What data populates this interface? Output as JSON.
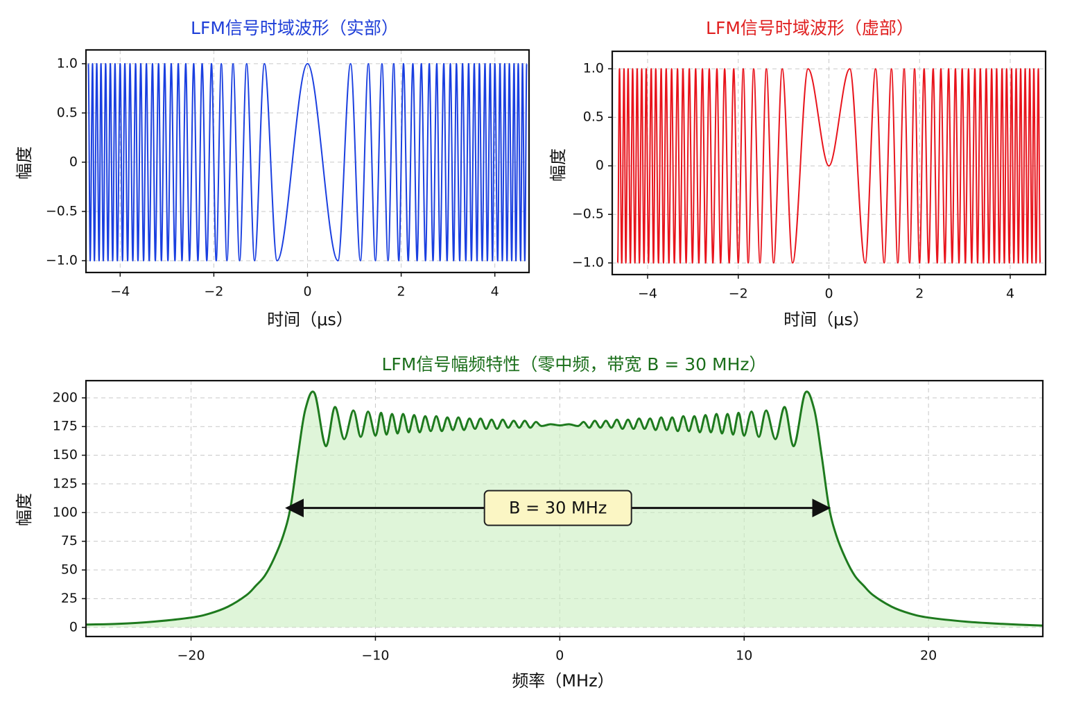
{
  "chart_data": [
    {
      "type": "line",
      "title": "LFM信号时域波形（实部）",
      "title_color": "#1f3fd8",
      "xlabel": "时间（μs）",
      "ylabel": "幅度",
      "color": "#1a3fe0",
      "x": [
        -4.68,
        -4.64,
        -4.59,
        -4.55,
        -4.5,
        -4.45,
        -4.41,
        -4.36,
        -4.31,
        -4.26,
        -4.21,
        -4.16,
        -4.11,
        -4.06,
        -4.0,
        -3.95,
        -3.9,
        -3.84,
        -3.79,
        -3.73,
        -3.67,
        -3.62,
        -3.56,
        -3.5,
        -3.44,
        -3.38,
        -3.31,
        -3.25,
        -3.18,
        -3.12,
        -3.05,
        -2.98,
        -2.91,
        -2.83,
        -2.76,
        -2.68,
        -2.6,
        -2.52,
        -2.43,
        -2.34,
        -2.25,
        -2.15,
        -2.05,
        -1.95,
        -1.84,
        -1.72,
        -1.59,
        -1.45,
        -1.3,
        -1.13,
        -0.92,
        -0.65,
        0,
        0.65,
        0.92,
        1.13,
        1.3,
        1.45,
        1.59,
        1.72,
        1.84,
        1.95,
        2.05,
        2.15,
        2.25,
        2.34,
        2.43,
        2.52,
        2.6,
        2.68,
        2.76,
        2.83,
        2.91,
        2.98,
        3.05,
        3.12,
        3.18,
        3.25,
        3.31,
        3.38,
        3.44,
        3.5,
        3.56,
        3.62,
        3.67,
        3.73,
        3.79,
        3.84,
        3.9,
        3.95,
        4.0,
        4.06,
        4.11,
        4.16,
        4.21,
        4.26,
        4.31,
        4.36,
        4.41,
        4.45,
        4.5,
        4.55,
        4.59,
        4.64,
        4.68
      ],
      "values": [
        1,
        -1,
        1,
        -1,
        1,
        -1,
        1,
        -1,
        1,
        -1,
        1,
        -1,
        1,
        -1,
        1,
        -1,
        1,
        -1,
        1,
        -1,
        1,
        -1,
        1,
        -1,
        1,
        -1,
        1,
        -1,
        1,
        -1,
        1,
        -1,
        1,
        -1,
        1,
        -1,
        1,
        -1,
        1,
        -1,
        1,
        -1,
        1,
        -1,
        1,
        -1,
        1,
        -1,
        1,
        -1,
        1,
        -1,
        1,
        -1,
        1,
        -1,
        1,
        -1,
        1,
        -1,
        1,
        -1,
        1,
        -1,
        1,
        -1,
        1,
        -1,
        1,
        -1,
        1,
        -1,
        1,
        -1,
        1,
        -1,
        1,
        -1,
        1,
        -1,
        1,
        -1,
        1,
        -1,
        1,
        -1,
        1,
        -1,
        1,
        -1,
        1,
        -1,
        1,
        -1,
        1,
        -1,
        1,
        -1,
        1,
        -1,
        1,
        -1,
        1,
        -1,
        1
      ],
      "xlim": [
        -4.73,
        4.73
      ],
      "ylim": [
        -1.12,
        1.14
      ],
      "xticks": [
        {
          "value": -4,
          "label": "−4"
        },
        {
          "value": -2,
          "label": "−2"
        },
        0,
        2,
        4
      ],
      "yticks": [
        {
          "value": -1,
          "label": "−1.0"
        },
        {
          "value": -0.5,
          "label": "−0.5"
        },
        0,
        0.5,
        {
          "value": 1,
          "label": "1.0"
        }
      ],
      "grid": true
    },
    {
      "type": "line",
      "title": "LFM信号时域波形（虚部）",
      "title_color": "#e02020",
      "xlabel": "时间（μs）",
      "ylabel": "幅度",
      "color": "#e8141c",
      "x": [
        -4.66,
        -4.62,
        -4.57,
        -4.52,
        -4.48,
        -4.43,
        -4.38,
        -4.33,
        -4.28,
        -4.23,
        -4.18,
        -4.13,
        -4.08,
        -4.03,
        -3.98,
        -3.92,
        -3.87,
        -3.82,
        -3.76,
        -3.7,
        -3.65,
        -3.59,
        -3.53,
        -3.47,
        -3.41,
        -3.34,
        -3.28,
        -3.22,
        -3.15,
        -3.08,
        -3.01,
        -2.94,
        -2.87,
        -2.79,
        -2.72,
        -2.64,
        -2.56,
        -2.47,
        -2.39,
        -2.3,
        -2.2,
        -2.1,
        -2.0,
        -1.89,
        -1.78,
        -1.66,
        -1.52,
        -1.38,
        -1.22,
        -1.03,
        -0.8,
        -0.46,
        0,
        0.46,
        0.8,
        1.03,
        1.22,
        1.38,
        1.52,
        1.66,
        1.78,
        1.89,
        2.0,
        2.1,
        2.2,
        2.3,
        2.39,
        2.47,
        2.56,
        2.64,
        2.72,
        2.79,
        2.87,
        2.94,
        3.01,
        3.08,
        3.15,
        3.22,
        3.28,
        3.34,
        3.41,
        3.47,
        3.53,
        3.59,
        3.65,
        3.7,
        3.76,
        3.82,
        3.87,
        3.92,
        3.98,
        4.03,
        4.08,
        4.13,
        4.18,
        4.23,
        4.28,
        4.33,
        4.38,
        4.43,
        4.48,
        4.52,
        4.57,
        4.62,
        4.66
      ],
      "values": [
        -1,
        1,
        -1,
        1,
        -1,
        1,
        -1,
        1,
        -1,
        1,
        -1,
        1,
        -1,
        1,
        -1,
        1,
        -1,
        1,
        -1,
        1,
        -1,
        1,
        -1,
        1,
        -1,
        1,
        -1,
        1,
        -1,
        1,
        -1,
        1,
        -1,
        1,
        -1,
        1,
        -1,
        1,
        -1,
        1,
        -1,
        1,
        -1,
        1,
        -1,
        1,
        -1,
        1,
        -1,
        1,
        -1,
        1,
        0,
        1,
        -1,
        1,
        -1,
        1,
        -1,
        1,
        -1,
        1,
        -1,
        1,
        -1,
        1,
        -1,
        1,
        -1,
        1,
        -1,
        1,
        -1,
        1,
        -1,
        1,
        -1,
        1,
        -1,
        1,
        -1,
        1,
        -1,
        1,
        -1,
        1,
        -1,
        1,
        -1,
        1,
        -1,
        1,
        -1,
        1,
        -1,
        1,
        -1,
        1,
        -1,
        1,
        -1,
        1,
        -1,
        1,
        -1
      ],
      "xlim": [
        -4.78,
        4.78
      ],
      "ylim": [
        -1.12,
        1.18
      ],
      "xticks": [
        {
          "value": -4,
          "label": "−4"
        },
        {
          "value": -2,
          "label": "−2"
        },
        0,
        2,
        4
      ],
      "yticks": [
        {
          "value": -1,
          "label": "−1.0"
        },
        {
          "value": -0.5,
          "label": "−0.5"
        },
        0,
        0.5,
        {
          "value": 1,
          "label": "1.0"
        }
      ],
      "grid": true
    },
    {
      "type": "area",
      "title": "LFM信号幅频特性（零中频，带宽 B = 30 MHz）",
      "title_color": "#1a6e1a",
      "xlabel": "频率（MHz）",
      "ylabel": "幅度",
      "color": "#1e7a1e",
      "fill": "#c9efc0",
      "x": [
        -25.7,
        -24,
        -22,
        -20,
        -19,
        -18,
        -17,
        -16.5,
        -16,
        -15.5,
        -15,
        -14.6,
        -14.2,
        -13.8,
        -13.3,
        -12.7,
        -12.2,
        -11.7,
        -11.2,
        -10.8,
        -10.4,
        -10.0,
        -9.7,
        -9.4,
        -9.1,
        -8.8,
        -8.5,
        -8.2,
        -7.9,
        -7.6,
        -7.3,
        -7.0,
        -6.7,
        -6.4,
        -6.1,
        -5.8,
        -5.5,
        -5.2,
        -4.9,
        -4.6,
        -4.3,
        -4.0,
        -3.7,
        -3.4,
        -3.1,
        -2.8,
        -2.5,
        -2.2,
        -1.9,
        -1.6,
        -1.3,
        -1,
        -0.5,
        0,
        0.5,
        1,
        1.3,
        1.6,
        1.9,
        2.2,
        2.5,
        2.8,
        3.1,
        3.4,
        3.7,
        4.0,
        4.3,
        4.6,
        4.9,
        5.2,
        5.5,
        5.8,
        6.1,
        6.4,
        6.7,
        7.0,
        7.3,
        7.6,
        7.9,
        8.2,
        8.5,
        8.8,
        9.1,
        9.4,
        9.7,
        10.0,
        10.4,
        10.8,
        11.2,
        11.7,
        12.2,
        12.7,
        13.3,
        13.8,
        14.2,
        14.6,
        15,
        15.5,
        16,
        16.5,
        17,
        18,
        19,
        20,
        22,
        24,
        26.2
      ],
      "values": [
        2.4,
        3,
        5,
        8.5,
        12,
        18,
        28,
        36,
        45,
        60,
        80,
        105,
        150,
        190,
        204,
        158,
        192,
        164,
        189,
        166,
        188,
        167,
        187,
        168,
        186,
        169,
        186,
        170,
        185,
        170,
        184,
        171,
        184,
        171,
        183,
        172,
        183,
        172,
        182,
        173,
        182,
        173,
        181,
        173,
        181,
        174,
        180,
        174,
        180,
        174,
        179,
        175.5,
        177,
        176,
        177,
        175.5,
        179,
        174,
        180,
        174,
        180,
        174,
        181,
        173,
        181,
        173,
        182,
        173,
        182,
        172,
        183,
        172,
        183,
        171,
        184,
        171,
        184,
        170,
        185,
        170,
        186,
        169,
        186,
        168,
        187,
        167,
        188,
        166,
        189,
        164,
        192,
        158,
        204,
        190,
        150,
        105,
        80,
        60,
        45,
        36,
        28,
        18,
        12,
        8.5,
        5,
        3,
        1.5
      ],
      "xlim": [
        -25.7,
        26.2
      ],
      "ylim": [
        -8,
        215
      ],
      "xticks": [
        {
          "value": -20,
          "label": "−20"
        },
        {
          "value": -10,
          "label": "−10"
        },
        0,
        10,
        20
      ],
      "yticks": [
        0,
        25,
        50,
        75,
        100,
        125,
        150,
        175,
        200
      ],
      "grid": true,
      "annotation": {
        "text": "B = 30 MHz",
        "x": [
          -14.8,
          14.6
        ],
        "y": 104
      }
    }
  ]
}
